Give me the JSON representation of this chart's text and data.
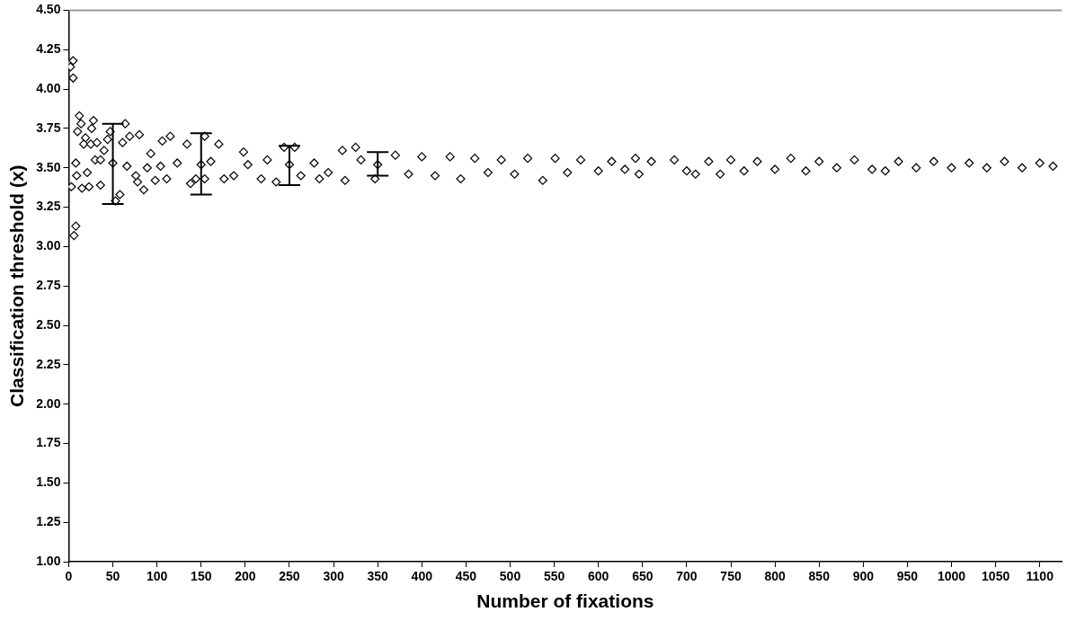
{
  "chart_data": {
    "type": "scatter",
    "xlabel": "Number of fixations",
    "ylabel": "Classification threshold (x)",
    "xlim": [
      0,
      1125
    ],
    "ylim": [
      1,
      4.5
    ],
    "xticks": [
      0,
      50,
      100,
      150,
      200,
      250,
      300,
      350,
      400,
      450,
      500,
      550,
      600,
      650,
      700,
      750,
      800,
      850,
      900,
      950,
      1000,
      1050,
      1100
    ],
    "yticks": [
      {
        "value": 1,
        "label": "1.00"
      },
      {
        "value": 1.25,
        "label": "1.25"
      },
      {
        "value": 1.5,
        "label": "1.50"
      },
      {
        "value": 1.75,
        "label": "1.75"
      },
      {
        "value": 2,
        "label": "2.00"
      },
      {
        "value": 2.25,
        "label": "2.25"
      },
      {
        "value": 2.5,
        "label": "2.50"
      },
      {
        "value": 2.75,
        "label": "2.75"
      },
      {
        "value": 3,
        "label": "3.00"
      },
      {
        "value": 3.25,
        "label": "3.25"
      },
      {
        "value": 3.5,
        "label": "3.50"
      },
      {
        "value": 3.75,
        "label": "3.75"
      },
      {
        "value": 4,
        "label": "4.00"
      },
      {
        "value": 4.25,
        "label": "4.25"
      },
      {
        "value": 4.5,
        "label": "4.50"
      }
    ],
    "grid": false,
    "legend": false,
    "marker": "diamond",
    "series": [
      {
        "color": "#000000",
        "x": [
          0,
          2,
          5,
          5,
          8,
          3,
          8,
          6,
          12,
          14,
          10,
          19,
          28,
          26,
          17,
          25,
          32,
          9,
          15,
          23,
          21,
          36,
          30,
          44,
          47,
          40,
          53,
          58,
          64,
          61,
          69,
          80,
          78,
          85,
          76,
          93,
          98,
          106,
          115,
          111,
          104,
          134,
          138,
          144,
          154,
          154,
          170,
          176,
          187,
          198,
          218,
          235,
          244,
          256,
          263,
          284,
          294,
          313,
          310,
          325,
          347,
          36,
          66,
          89,
          123,
          161,
          203,
          225,
          278,
          331,
          370,
          385,
          400,
          415,
          432,
          444,
          460,
          475,
          490,
          505,
          520,
          537,
          551,
          565,
          580,
          600,
          615,
          630,
          642,
          646,
          660,
          686,
          700,
          710,
          725,
          738,
          750,
          765,
          780,
          800,
          818,
          835,
          850,
          870,
          890,
          910,
          925,
          940,
          960,
          980,
          1000,
          1020,
          1040,
          1060,
          1080,
          1100,
          1115
        ],
        "values": [
          4.16,
          4.14,
          4.18,
          4.07,
          3.53,
          3.38,
          3.13,
          3.07,
          3.83,
          3.78,
          3.73,
          3.69,
          3.8,
          3.75,
          3.65,
          3.65,
          3.66,
          3.45,
          3.37,
          3.38,
          3.47,
          3.39,
          3.55,
          3.68,
          3.73,
          3.61,
          3.29,
          3.33,
          3.78,
          3.66,
          3.7,
          3.71,
          3.41,
          3.36,
          3.45,
          3.59,
          3.42,
          3.67,
          3.7,
          3.43,
          3.51,
          3.65,
          3.4,
          3.43,
          3.43,
          3.7,
          3.65,
          3.43,
          3.45,
          3.6,
          3.43,
          3.41,
          3.63,
          3.63,
          3.45,
          3.43,
          3.47,
          3.42,
          3.61,
          3.63,
          3.43,
          3.55,
          3.51,
          3.5,
          3.53,
          3.54,
          3.52,
          3.55,
          3.53,
          3.55,
          3.58,
          3.46,
          3.57,
          3.45,
          3.57,
          3.43,
          3.56,
          3.47,
          3.55,
          3.46,
          3.56,
          3.42,
          3.56,
          3.47,
          3.55,
          3.48,
          3.54,
          3.49,
          3.56,
          3.46,
          3.54,
          3.55,
          3.48,
          3.46,
          3.54,
          3.46,
          3.55,
          3.48,
          3.54,
          3.49,
          3.56,
          3.48,
          3.54,
          3.5,
          3.55,
          3.49,
          3.48,
          3.54,
          3.5,
          3.54,
          3.5,
          3.53,
          3.5,
          3.54,
          3.5,
          3.53,
          3.51
        ]
      },
      {
        "color": "#000000",
        "x": [
          50,
          150,
          250,
          350
        ],
        "values": [
          3.53,
          3.52,
          3.52,
          3.52
        ],
        "errors": [
          [
            3.27,
            3.78
          ],
          [
            3.33,
            3.72
          ],
          [
            3.39,
            3.64
          ],
          [
            3.45,
            3.6
          ]
        ]
      }
    ]
  }
}
